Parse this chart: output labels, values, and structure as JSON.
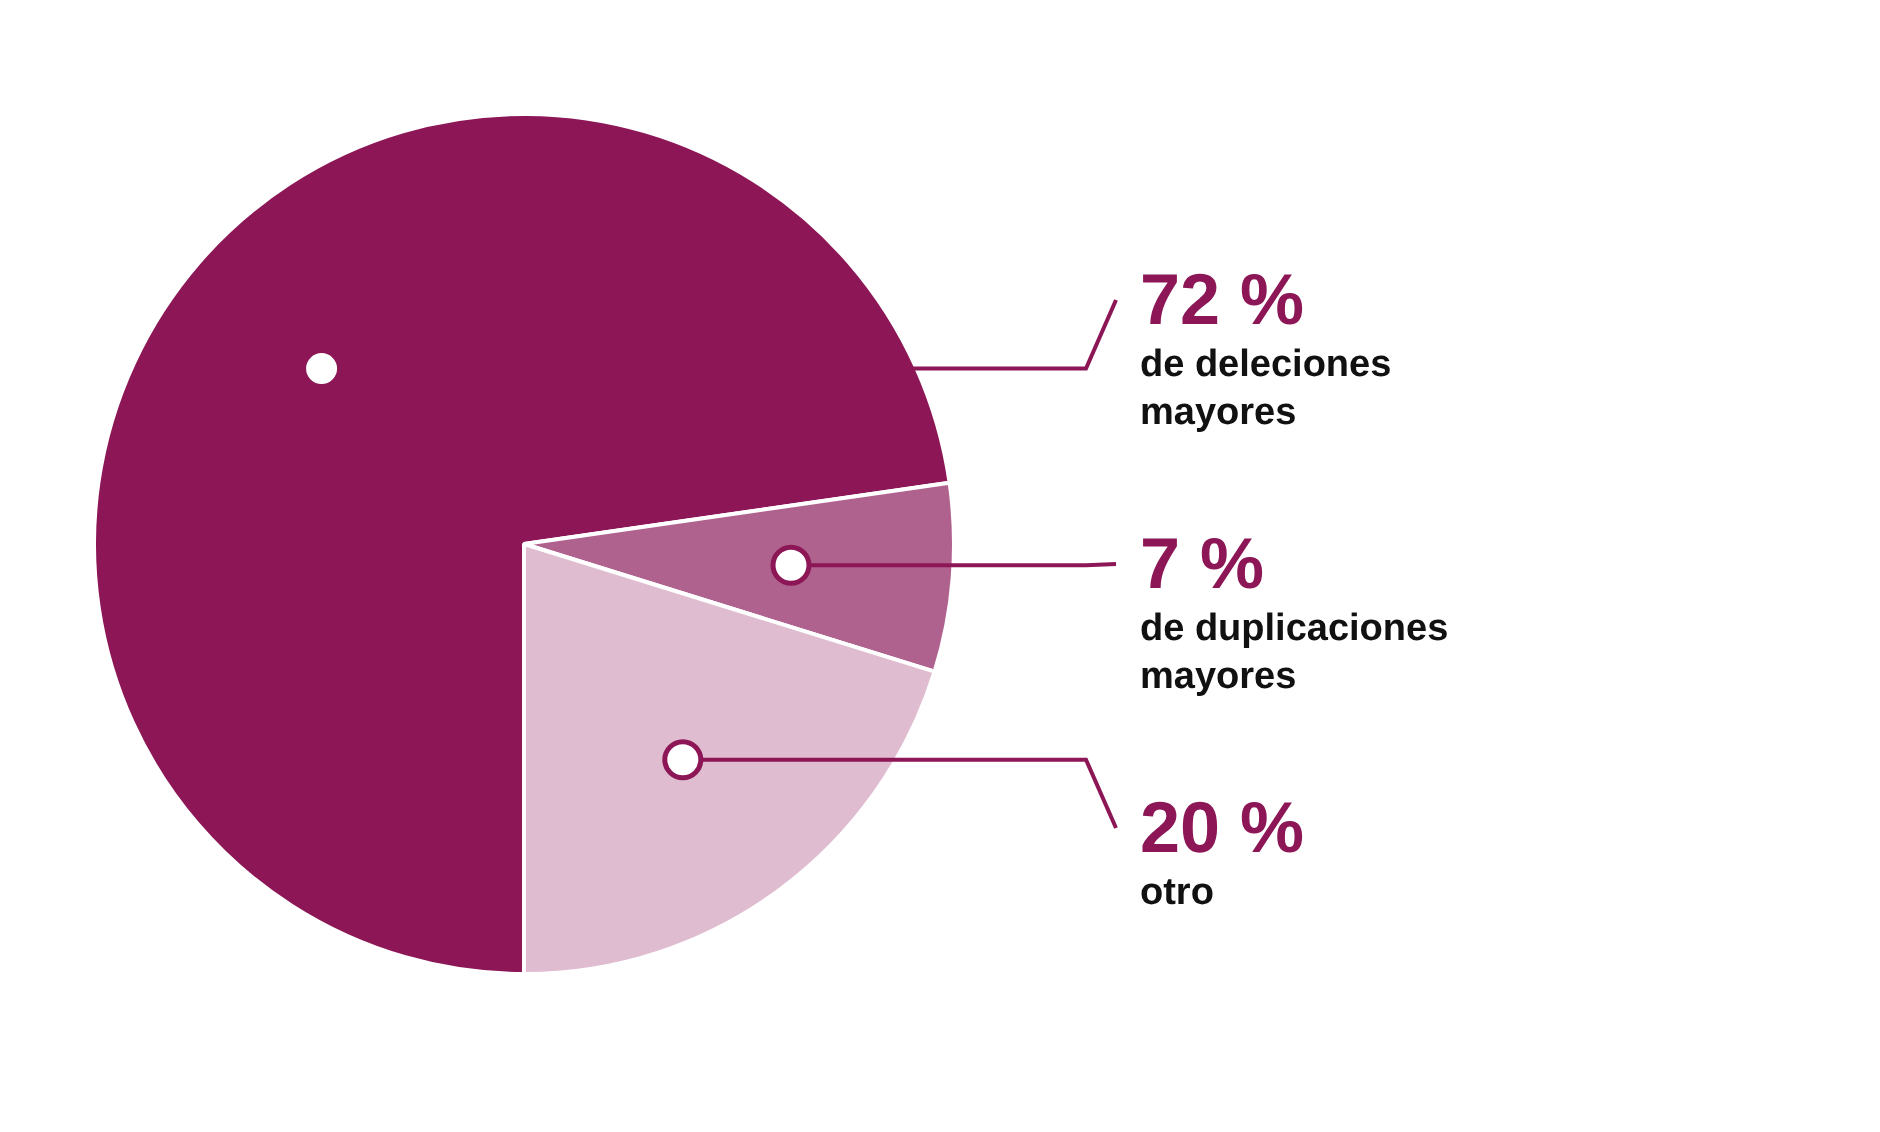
{
  "chart_data": {
    "type": "pie",
    "categories": [
      "de deleciones mayores",
      "de duplicaciones mayores",
      "otro"
    ],
    "values": [
      72,
      7,
      20
    ],
    "value_labels": [
      "72 %",
      "7 %",
      "20 %"
    ],
    "colors": [
      "#8c1656",
      "#b0628f",
      "#dfbcd0"
    ],
    "legend": false
  }
}
